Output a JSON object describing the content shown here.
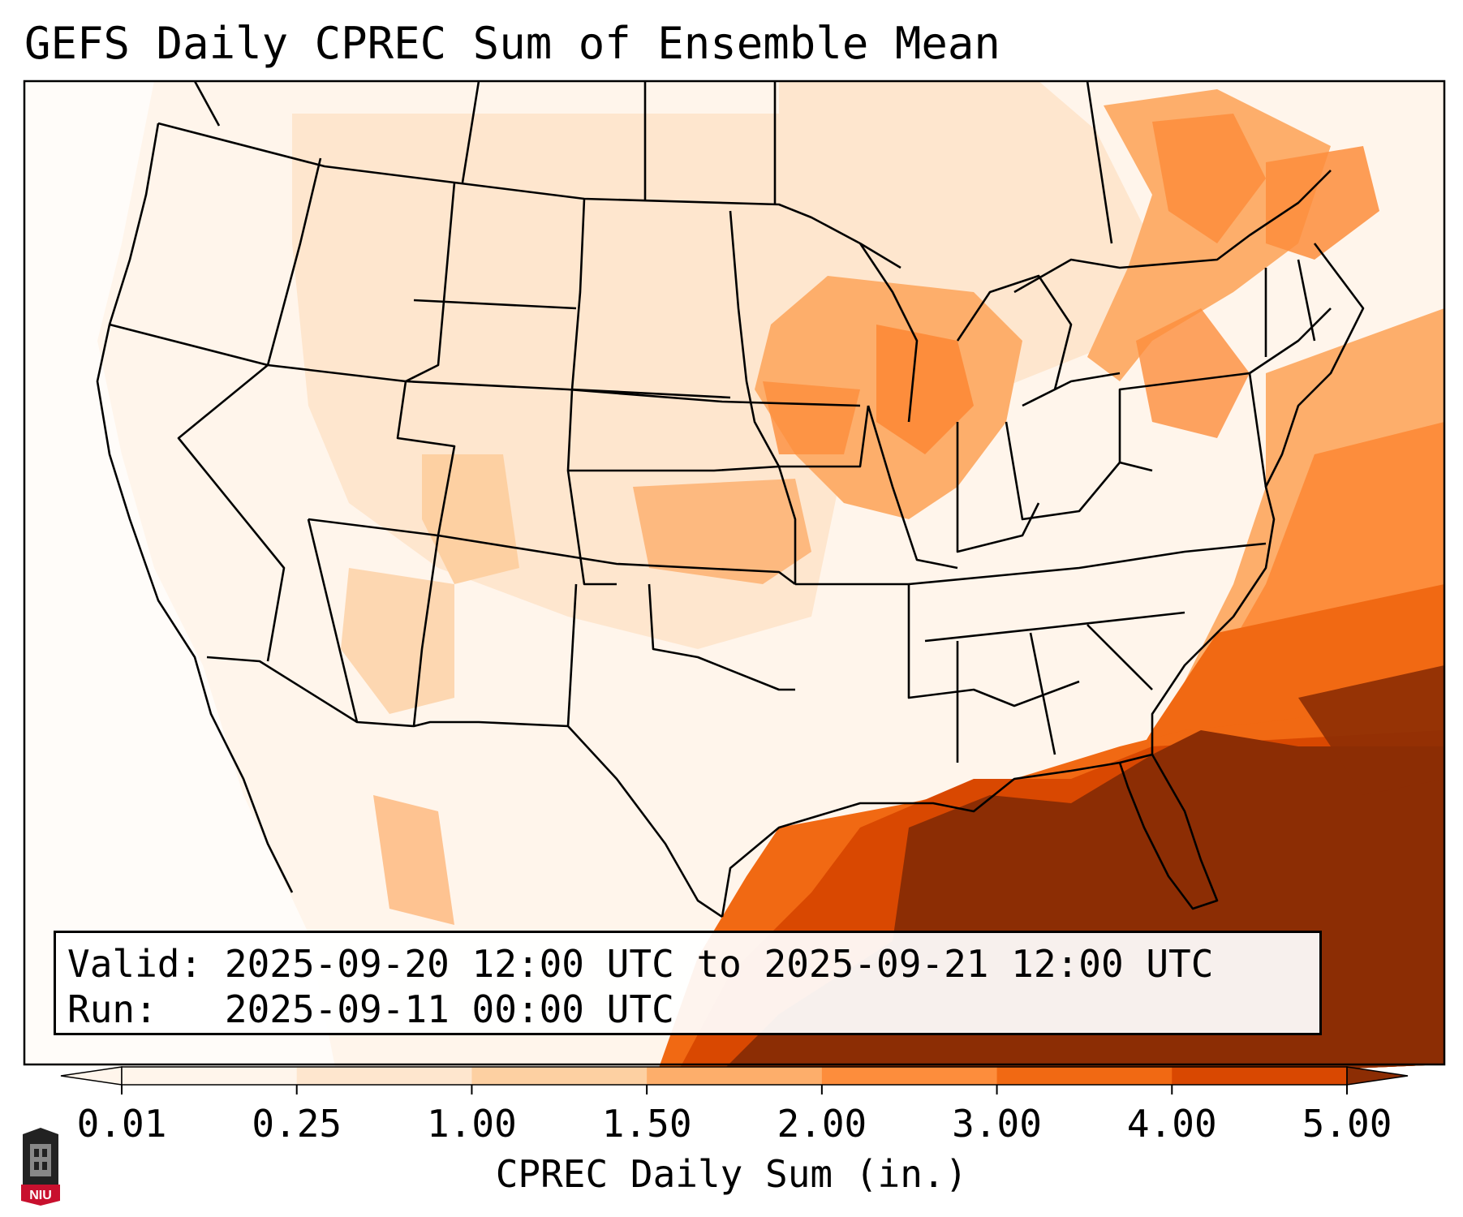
{
  "title": "GEFS Daily CPREC Sum of Ensemble Mean",
  "info": {
    "valid_label": "Valid:",
    "valid_text": "2025-09-20 12:00 UTC to 2025-09-21 12:00 UTC",
    "run_label": "Run:",
    "run_text": "2025-09-11 00:00 UTC"
  },
  "colorbar": {
    "label": "CPREC Daily Sum (in.)",
    "ticks": [
      "0.01",
      "0.25",
      "1.00",
      "1.50",
      "2.00",
      "3.00",
      "4.00",
      "5.00"
    ],
    "colors": [
      "#fff5eb",
      "#fee6ce",
      "#fdd0a2",
      "#fdae6b",
      "#fd8d3c",
      "#f16913",
      "#d94801",
      "#8c2d04"
    ],
    "extend": "both"
  },
  "logo": {
    "text": "NIU",
    "color": "#c8102e"
  },
  "map": {
    "region": "Continental United States",
    "borders": "state and country boundaries",
    "colors": {
      "land_low": "#fff5eb",
      "ocean_low": "#ffffff",
      "border": "#000000"
    }
  }
}
